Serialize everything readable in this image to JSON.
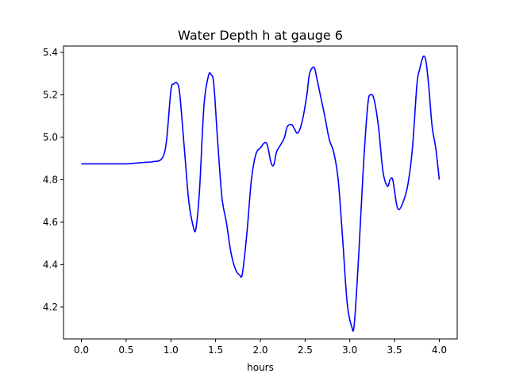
{
  "chart_data": {
    "type": "line",
    "title": "Water Depth h at gauge 6",
    "xlabel": "hours",
    "ylabel": "",
    "xlim": [
      -0.2,
      4.2
    ],
    "ylim": [
      4.05,
      5.43
    ],
    "xticks": [
      0.0,
      0.5,
      1.0,
      1.5,
      2.0,
      2.5,
      3.0,
      3.5,
      4.0
    ],
    "xtick_labels": [
      "0.0",
      "0.5",
      "1.0",
      "1.5",
      "2.0",
      "2.5",
      "3.0",
      "3.5",
      "4.0"
    ],
    "yticks": [
      4.2,
      4.4,
      4.6,
      4.8,
      5.0,
      5.2,
      5.4
    ],
    "ytick_labels": [
      "4.2",
      "4.4",
      "4.6",
      "4.8",
      "5.0",
      "5.2",
      "5.4"
    ],
    "grid": false,
    "legend": "none",
    "series": [
      {
        "color": "#0000ff",
        "x": [
          0.0,
          0.5,
          0.6,
          0.7,
          0.8,
          0.9,
          0.95,
          1.0,
          1.03,
          1.07,
          1.1,
          1.15,
          1.2,
          1.25,
          1.28,
          1.32,
          1.37,
          1.42,
          1.45,
          1.48,
          1.52,
          1.57,
          1.62,
          1.67,
          1.72,
          1.77,
          1.8,
          1.85,
          1.9,
          1.95,
          2.0,
          2.05,
          2.08,
          2.12,
          2.15,
          2.18,
          2.22,
          2.27,
          2.3,
          2.35,
          2.38,
          2.42,
          2.47,
          2.52,
          2.55,
          2.6,
          2.63,
          2.67,
          2.72,
          2.77,
          2.82,
          2.87,
          2.92,
          2.97,
          3.02,
          3.05,
          3.1,
          3.15,
          3.2,
          3.23,
          3.27,
          3.32,
          3.37,
          3.42,
          3.45,
          3.48,
          3.52,
          3.55,
          3.6,
          3.65,
          3.7,
          3.75,
          3.78,
          3.82,
          3.85,
          3.88,
          3.92,
          3.96,
          4.0
        ],
        "y": [
          4.875,
          4.875,
          4.878,
          4.882,
          4.885,
          4.9,
          4.98,
          5.22,
          5.25,
          5.255,
          5.2,
          4.95,
          4.7,
          4.58,
          4.57,
          4.75,
          5.15,
          5.29,
          5.295,
          5.25,
          5.0,
          4.72,
          4.6,
          4.46,
          4.38,
          4.35,
          4.36,
          4.55,
          4.8,
          4.92,
          4.95,
          4.975,
          4.96,
          4.88,
          4.87,
          4.93,
          4.96,
          5.0,
          5.05,
          5.06,
          5.04,
          5.02,
          5.08,
          5.2,
          5.3,
          5.33,
          5.28,
          5.2,
          5.1,
          4.99,
          4.93,
          4.8,
          4.52,
          4.22,
          4.11,
          4.12,
          4.45,
          4.85,
          5.15,
          5.2,
          5.18,
          5.05,
          4.84,
          4.77,
          4.8,
          4.8,
          4.69,
          4.66,
          4.7,
          4.78,
          4.95,
          5.25,
          5.32,
          5.38,
          5.36,
          5.25,
          5.05,
          4.95,
          4.8
        ]
      }
    ]
  }
}
